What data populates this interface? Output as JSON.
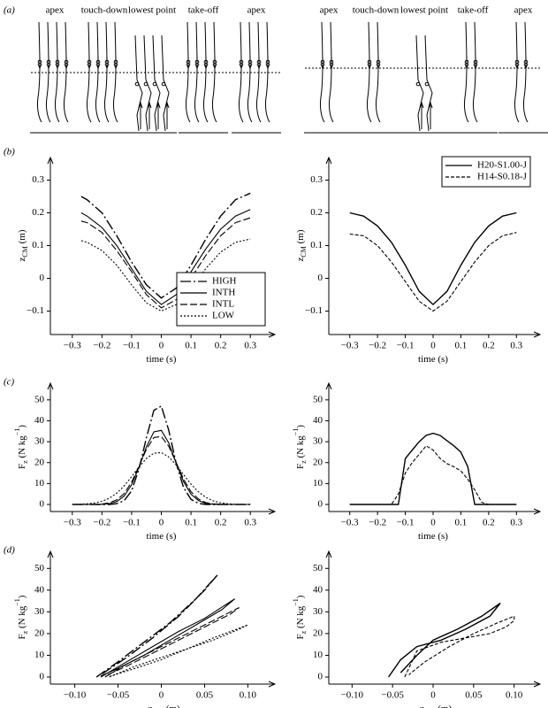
{
  "panel_labels": [
    "(a)",
    "(b)",
    "(c)",
    "(d)"
  ],
  "panel_a": {
    "left_labels": [
      "apex",
      "touch-down",
      "lowest point",
      "take-off",
      "apex"
    ],
    "right_labels": [
      "apex",
      "touch-down",
      "lowest point",
      "take-off",
      "apex"
    ]
  },
  "chart_data": [
    {
      "type": "line",
      "legend": "lower right",
      "xlabel": [
        "time (s)"
      ],
      "ylabel": [
        "z",
        "CM",
        " (m)"
      ],
      "x": [
        -0.27,
        -0.25,
        -0.2,
        -0.15,
        -0.1,
        -0.05,
        0,
        0.05,
        0.1,
        0.15,
        0.2,
        0.25,
        0.3
      ],
      "series": [
        {
          "name": "HIGH",
          "color": "#000",
          "dash": "12 3 2 3",
          "values": [
            0.25,
            0.24,
            0.2,
            0.13,
            0.05,
            -0.02,
            -0.06,
            -0.03,
            0.04,
            0.12,
            0.19,
            0.24,
            0.26
          ]
        },
        {
          "name": "INTH",
          "color": "#000",
          "dash": "none",
          "values": [
            0.2,
            0.19,
            0.155,
            0.1,
            0.03,
            -0.04,
            -0.08,
            -0.05,
            0.02,
            0.09,
            0.15,
            0.19,
            0.21
          ]
        },
        {
          "name": "INTL",
          "color": "#000",
          "dash": "8 3",
          "values": [
            0.175,
            0.17,
            0.14,
            0.085,
            0.02,
            -0.05,
            -0.09,
            -0.065,
            0,
            0.07,
            0.13,
            0.17,
            0.185
          ]
        },
        {
          "name": "LOW",
          "color": "#000",
          "dash": "2 2",
          "values": [
            0.115,
            0.11,
            0.085,
            0.04,
            -0.02,
            -0.075,
            -0.1,
            -0.08,
            -0.03,
            0.03,
            0.08,
            0.11,
            0.12
          ]
        }
      ],
      "xlim": [
        -0.35,
        0.35
      ],
      "ylim": [
        -0.15,
        0.35
      ],
      "xticks": [
        {
          "value": -0.3,
          "label": "−0.3"
        },
        {
          "value": -0.2,
          "label": "−0.2"
        },
        {
          "value": -0.1,
          "label": "−0.1"
        },
        0,
        0.1,
        0.2,
        0.3
      ],
      "yticks": [
        {
          "value": -0.1,
          "label": "−0.1"
        },
        0,
        0.1,
        0.2,
        0.3
      ]
    },
    {
      "type": "line",
      "legend": "upper right",
      "xlabel": [
        "time (s)"
      ],
      "ylabel": [
        "z",
        "CM",
        " (m)"
      ],
      "x": [
        -0.3,
        -0.25,
        -0.2,
        -0.15,
        -0.1,
        -0.05,
        0,
        0.05,
        0.1,
        0.15,
        0.2,
        0.25,
        0.3
      ],
      "series": [
        {
          "name": "H20-S1.00-J",
          "color": "#000",
          "dash": "none",
          "values": [
            0.2,
            0.19,
            0.16,
            0.11,
            0.04,
            -0.04,
            -0.08,
            -0.04,
            0.04,
            0.11,
            0.16,
            0.19,
            0.2
          ]
        },
        {
          "name": "H14-S0.18-J",
          "color": "#000",
          "dash": "4 2",
          "values": [
            0.135,
            0.13,
            0.1,
            0.05,
            -0.01,
            -0.07,
            -0.1,
            -0.07,
            -0.01,
            0.05,
            0.1,
            0.13,
            0.14
          ]
        }
      ],
      "xlim": [
        -0.35,
        0.35
      ],
      "ylim": [
        -0.15,
        0.35
      ],
      "xticks": [
        {
          "value": -0.3,
          "label": "−0.3"
        },
        {
          "value": -0.2,
          "label": "−0.2"
        },
        {
          "value": -0.1,
          "label": "−0.1"
        },
        0,
        0.1,
        0.2,
        0.3
      ],
      "yticks": [
        {
          "value": -0.1,
          "label": "−0.1"
        },
        0,
        0.1,
        0.2,
        0.3
      ]
    },
    {
      "type": "line",
      "xlabel": [
        "time (s)"
      ],
      "ylabel": [
        "F",
        "z",
        " (N kg",
        "−1",
        ")"
      ],
      "x": [
        -0.3,
        -0.275,
        -0.25,
        -0.225,
        -0.2,
        -0.175,
        -0.15,
        -0.125,
        -0.1,
        -0.075,
        -0.05,
        -0.025,
        0,
        0.025,
        0.05,
        0.075,
        0.1,
        0.125,
        0.15,
        0.175,
        0.2,
        0.225,
        0.25,
        0.275,
        0.3
      ],
      "series": [
        {
          "color": "#000",
          "dash": "12 3 2 3",
          "values": [
            0,
            0,
            0,
            0,
            0,
            0,
            0.4,
            1.8,
            6.5,
            17,
            32,
            45,
            47,
            35.5,
            19.7,
            8.1,
            2.4,
            0.5,
            0,
            0,
            0,
            0,
            0,
            0,
            0
          ]
        },
        {
          "color": "#000",
          "dash": "none",
          "values": [
            0,
            0,
            0,
            0,
            0.1,
            0.4,
            1.4,
            4,
            9.4,
            17.9,
            27.6,
            34.7,
            35.4,
            29.4,
            19.8,
            10.9,
            4.9,
            1.8,
            0.5,
            0.1,
            0,
            0,
            0,
            0,
            0
          ]
        },
        {
          "color": "#000",
          "dash": "8 3",
          "values": [
            0,
            0,
            0,
            0,
            0.2,
            0.8,
            2.2,
            5.2,
            10.7,
            18.3,
            26.4,
            32,
            32.5,
            27.8,
            20,
            12.1,
            6.1,
            2.6,
            0.9,
            0.3,
            0.1,
            0,
            0,
            0,
            0
          ]
        },
        {
          "color": "#000",
          "dash": "2 2",
          "values": [
            0,
            0.1,
            0.3,
            0.7,
            1.5,
            3,
            5.4,
            8.9,
            13.3,
            18,
            22,
            24.5,
            24.8,
            22.7,
            18.9,
            14.2,
            9.7,
            6,
            3.4,
            1.7,
            0.8,
            0.3,
            0.1,
            0,
            0
          ]
        }
      ],
      "xlim": [
        -0.35,
        0.35
      ],
      "ylim": [
        0,
        55
      ],
      "xticks": [
        {
          "value": -0.3,
          "label": "−0.3"
        },
        {
          "value": -0.2,
          "label": "−0.2"
        },
        {
          "value": -0.1,
          "label": "−0.1"
        },
        0,
        0.1,
        0.2,
        0.3
      ],
      "yticks": [
        0,
        10,
        20,
        30,
        40,
        50
      ]
    },
    {
      "type": "line",
      "xlabel": [
        "time (s)"
      ],
      "ylabel": [
        "F",
        "z",
        " (N kg",
        "−1",
        ")"
      ],
      "x": [
        -0.3,
        -0.275,
        -0.25,
        -0.225,
        -0.2,
        -0.175,
        -0.15,
        -0.125,
        -0.1,
        -0.075,
        -0.05,
        -0.025,
        0,
        0.025,
        0.05,
        0.075,
        0.1,
        0.125,
        0.15,
        0.175,
        0.2,
        0.225,
        0.25,
        0.275,
        0.3
      ],
      "series": [
        {
          "color": "#000",
          "dash": "none",
          "values": [
            0,
            0,
            0,
            0,
            0,
            0,
            0,
            0,
            22,
            26,
            30,
            33,
            34,
            33,
            30.5,
            28,
            25,
            18,
            0,
            0,
            0,
            0,
            0,
            0,
            0
          ]
        },
        {
          "color": "#000",
          "dash": "4 2",
          "values": [
            0,
            0,
            0,
            0,
            0,
            0,
            0,
            5,
            15,
            20,
            24,
            28,
            26,
            22,
            19.5,
            18,
            16,
            12,
            7,
            1,
            0,
            0,
            0,
            0,
            0
          ]
        }
      ],
      "xlim": [
        -0.35,
        0.35
      ],
      "ylim": [
        0,
        55
      ],
      "xticks": [
        {
          "value": -0.3,
          "label": "−0.3"
        },
        {
          "value": -0.2,
          "label": "−0.2"
        },
        {
          "value": -0.1,
          "label": "−0.1"
        },
        0,
        0.1,
        0.2,
        0.3
      ],
      "yticks": [
        0,
        10,
        20,
        30,
        40,
        50
      ]
    },
    {
      "type": "line",
      "xlabel": [
        "−z",
        "CM",
        " (m)"
      ],
      "ylabel": [
        "F",
        "z",
        " (N kg",
        "−1",
        ")"
      ],
      "series": [
        {
          "color": "#000",
          "dash": "12 3 2 3",
          "x": [
            -0.075,
            -0.05,
            -0.02,
            0.01,
            0.04,
            0.065,
            0.05,
            0.02,
            -0.01,
            -0.04,
            -0.07
          ],
          "values": [
            0,
            7,
            16,
            25,
            36,
            47,
            40,
            28,
            18,
            9,
            1
          ]
        },
        {
          "color": "#000",
          "dash": "none",
          "x": [
            -0.07,
            -0.04,
            -0.01,
            0.02,
            0.05,
            0.085,
            0.07,
            0.04,
            0.01,
            -0.02,
            -0.05,
            -0.07
          ],
          "values": [
            0,
            7,
            14,
            21,
            27,
            36,
            31,
            24,
            17,
            10,
            4,
            0.5
          ]
        },
        {
          "color": "#000",
          "dash": "8 3",
          "x": [
            -0.065,
            -0.04,
            -0.01,
            0.02,
            0.05,
            0.09,
            0.08,
            0.05,
            0.02,
            -0.01,
            -0.04,
            -0.065
          ],
          "values": [
            0,
            6,
            12,
            18,
            24,
            32,
            29,
            23,
            17,
            11,
            5,
            0.5
          ]
        },
        {
          "color": "#000",
          "dash": "2 2",
          "x": [
            -0.06,
            -0.03,
            0,
            0.03,
            0.06,
            0.1,
            0.09,
            0.06,
            0.03,
            0,
            -0.03,
            -0.06
          ],
          "values": [
            0,
            5,
            9,
            13,
            18,
            24,
            22,
            17,
            13,
            8,
            4,
            0.3
          ]
        }
      ],
      "xlim": [
        -0.12,
        0.12
      ],
      "ylim": [
        0,
        55
      ],
      "xticks": [
        {
          "value": -0.1,
          "label": "−0.10"
        },
        {
          "value": -0.05,
          "label": "−0.05"
        },
        0,
        0.05,
        {
          "value": 0.1,
          "label": "0.10"
        }
      ],
      "yticks": [
        0,
        10,
        20,
        30,
        40,
        50
      ]
    },
    {
      "type": "line",
      "xlabel": [
        "−z",
        "CM",
        " (m)"
      ],
      "ylabel": [
        "F",
        "z",
        " (N kg",
        "−1",
        ")"
      ],
      "series": [
        {
          "color": "#000",
          "dash": "none",
          "x": [
            -0.055,
            -0.04,
            -0.02,
            0.01,
            0.04,
            0.07,
            0.083,
            0.06,
            0.03,
            0,
            -0.02,
            -0.04
          ],
          "values": [
            0,
            8,
            14,
            17,
            22,
            28,
            34,
            28,
            22,
            17,
            10,
            2
          ]
        },
        {
          "color": "#000",
          "dash": "4 2",
          "x": [
            -0.035,
            -0.02,
            0.01,
            0.04,
            0.07,
            0.09,
            0.1,
            0.1,
            0.08,
            0.05,
            0.02,
            -0.01,
            -0.03
          ],
          "values": [
            0,
            12,
            16,
            18,
            20,
            23,
            26,
            28,
            25,
            20,
            14,
            7,
            1
          ]
        }
      ],
      "xlim": [
        -0.12,
        0.12
      ],
      "ylim": [
        0,
        55
      ],
      "xticks": [
        {
          "value": -0.1,
          "label": "−0.10"
        },
        {
          "value": -0.05,
          "label": "−0.05"
        },
        0,
        0.05,
        {
          "value": 0.1,
          "label": "0.10"
        }
      ],
      "yticks": [
        0,
        10,
        20,
        30,
        40,
        50
      ]
    }
  ]
}
